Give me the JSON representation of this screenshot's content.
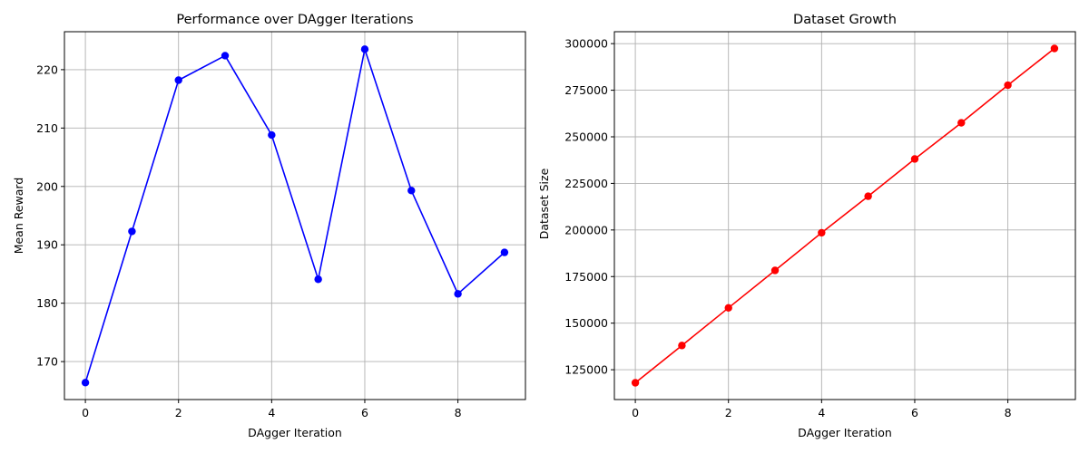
{
  "chart_data": [
    {
      "type": "line",
      "title": "Performance over DAgger Iterations",
      "xlabel": "DAgger Iteration",
      "ylabel": "Mean Reward",
      "x": [
        0,
        1,
        2,
        3,
        4,
        5,
        6,
        7,
        8,
        9
      ],
      "series": [
        {
          "values": [
            166.4,
            192.3,
            218.2,
            222.4,
            208.8,
            184.1,
            223.5,
            199.3,
            181.6,
            188.7
          ]
        }
      ],
      "color": "#0000ff",
      "marker": "circle",
      "xlim": [
        -0.45,
        9.45
      ],
      "ylim": [
        163.5,
        226.5
      ],
      "xticks": [
        0,
        2,
        4,
        6,
        8
      ],
      "yticks": [
        170,
        180,
        190,
        200,
        210,
        220
      ],
      "grid": true
    },
    {
      "type": "line",
      "title": "Dataset Growth",
      "xlabel": "DAgger Iteration",
      "ylabel": "Dataset Size",
      "x": [
        0,
        1,
        2,
        3,
        4,
        5,
        6,
        7,
        8,
        9
      ],
      "series": [
        {
          "values": [
            118000,
            138000,
            158200,
            178300,
            198500,
            218100,
            238100,
            257500,
            277700,
            297400
          ]
        }
      ],
      "color": "#ff0000",
      "marker": "circle",
      "xlim": [
        -0.45,
        9.45
      ],
      "ylim": [
        109000,
        306400
      ],
      "xticks": [
        0,
        2,
        4,
        6,
        8
      ],
      "yticks": [
        125000,
        150000,
        175000,
        200000,
        225000,
        250000,
        275000,
        300000
      ],
      "grid": true
    }
  ]
}
